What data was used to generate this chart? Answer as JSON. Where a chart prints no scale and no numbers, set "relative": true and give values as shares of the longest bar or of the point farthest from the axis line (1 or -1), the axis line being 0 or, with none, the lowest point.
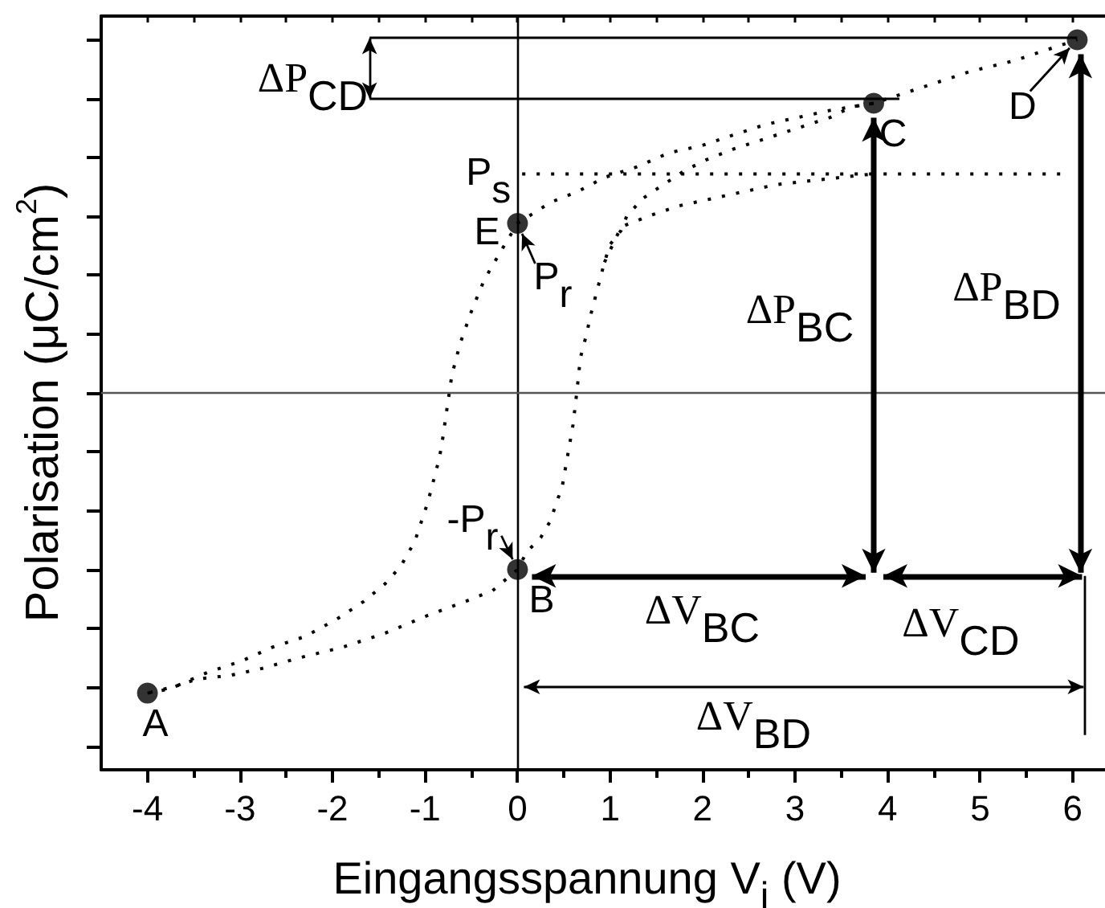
{
  "chart_data": {
    "type": "line",
    "xlabel": "Eingangsspannung V$_{i}$ (V)",
    "ylabel": "Polarisation (μC/cm$^{2}$)",
    "relative": true,
    "line_style": "dotted",
    "marker": "none",
    "xlim": [
      -4.5,
      6.35
    ],
    "xticks": [
      -4,
      {
        "value": -3.5,
        "label": null
      },
      -3,
      {
        "value": -2.5,
        "label": null
      },
      -2,
      {
        "value": -1.5,
        "label": null
      },
      -1,
      {
        "value": -0.5,
        "label": null
      },
      0,
      {
        "value": 0.5,
        "label": null
      },
      1,
      {
        "value": 1.5,
        "label": null
      },
      2,
      {
        "value": 2.5,
        "label": null
      },
      3,
      {
        "value": 3.5,
        "label": null
      },
      4,
      {
        "value": 4.5,
        "label": null
      },
      5,
      {
        "value": 5.5,
        "label": null
      },
      6
    ],
    "series": [
      {
        "color": "#000000",
        "x": [
          -4,
          -3.8,
          -3.46,
          -3.11,
          -2.76,
          -2.36,
          -1.89,
          -1.43,
          -0.97,
          -0.56,
          -0.27,
          0,
          0.1,
          0.25,
          0.36,
          0.42,
          0.48,
          0.54,
          0.6,
          0.64,
          0.68,
          0.74,
          0.8,
          0.86,
          0.94,
          1.0,
          1.12,
          1.18,
          1.35,
          1.52,
          1.81,
          2.04,
          2.33,
          2.68,
          3.03,
          3.38,
          3.61,
          3.85,
          4.43,
          4.89,
          5.36,
          5.82,
          6.05
        ],
        "values": [
          -0.85,
          -0.84,
          -0.81,
          -0.8,
          -0.78,
          -0.75,
          -0.72,
          -0.68,
          -0.63,
          -0.59,
          -0.56,
          -0.5,
          -0.45,
          -0.41,
          -0.36,
          -0.31,
          -0.27,
          -0.18,
          -0.09,
          0.0,
          0.1,
          0.16,
          0.23,
          0.29,
          0.37,
          0.42,
          0.46,
          0.5,
          0.55,
          0.58,
          0.63,
          0.66,
          0.69,
          0.72,
          0.75,
          0.78,
          0.81,
          0.82,
          0.87,
          0.91,
          0.94,
          0.98,
          1.0
        ]
      },
      {
        "color": "#000000",
        "x": [
          3.85,
          3.38,
          3.03,
          2.68,
          2.33,
          1.99,
          1.64,
          1.29,
          0.94,
          0.65,
          0.36,
          0,
          -0.16,
          -0.36,
          -0.5,
          -0.62,
          -0.71,
          -0.76,
          -0.82,
          -0.85,
          -0.97,
          -1.11,
          -1.26,
          -1.43,
          -1.66,
          -1.95,
          -2.3,
          -2.65,
          -2.99,
          -3.34,
          -3.69,
          -4
        ],
        "values": [
          0.82,
          0.8,
          0.78,
          0.76,
          0.73,
          0.7,
          0.68,
          0.64,
          0.61,
          0.57,
          0.54,
          0.48,
          0.41,
          0.32,
          0.23,
          0.14,
          0.05,
          -0.04,
          -0.15,
          -0.19,
          -0.31,
          -0.42,
          -0.49,
          -0.54,
          -0.59,
          -0.64,
          -0.69,
          -0.72,
          -0.76,
          -0.79,
          -0.83,
          -0.85
        ]
      },
      {
        "color": "#000000",
        "x": [
          0.94,
          1.12,
          1.41,
          1.75,
          2.1,
          2.45,
          2.8,
          3.14,
          3.49,
          3.84
        ],
        "values": [
          0.37,
          0.47,
          0.5,
          0.53,
          0.55,
          0.57,
          0.59,
          0.6,
          0.61,
          0.62
        ]
      },
      {
        "color": "#000000",
        "x": [
          0.05,
          5.88
        ],
        "values": [
          0.62,
          0.62
        ]
      },
      {
        "type": "scatter",
        "color": "#000000",
        "marker": "circle",
        "x": [
          -4,
          0,
          3.85,
          6.05,
          0
        ],
        "values": [
          -0.85,
          -0.5,
          0.82,
          1.0,
          0.48
        ]
      }
    ],
    "ref_lines": [
      {
        "axis": "x",
        "value": 0,
        "color": "#000000"
      },
      {
        "axis": "y",
        "value": 0,
        "color": "#555555"
      }
    ],
    "annotations": [
      "A",
      "B",
      "C",
      "D",
      "E",
      "P$_{s}$",
      "P$_{r}$",
      "-P$_{r}$",
      "ΔP$_{CD}$",
      "ΔP$_{BC}$",
      "ΔP$_{BD}$",
      "ΔV$_{BC}$",
      "ΔV$_{CD}$",
      "ΔV$_{BD}$"
    ]
  }
}
